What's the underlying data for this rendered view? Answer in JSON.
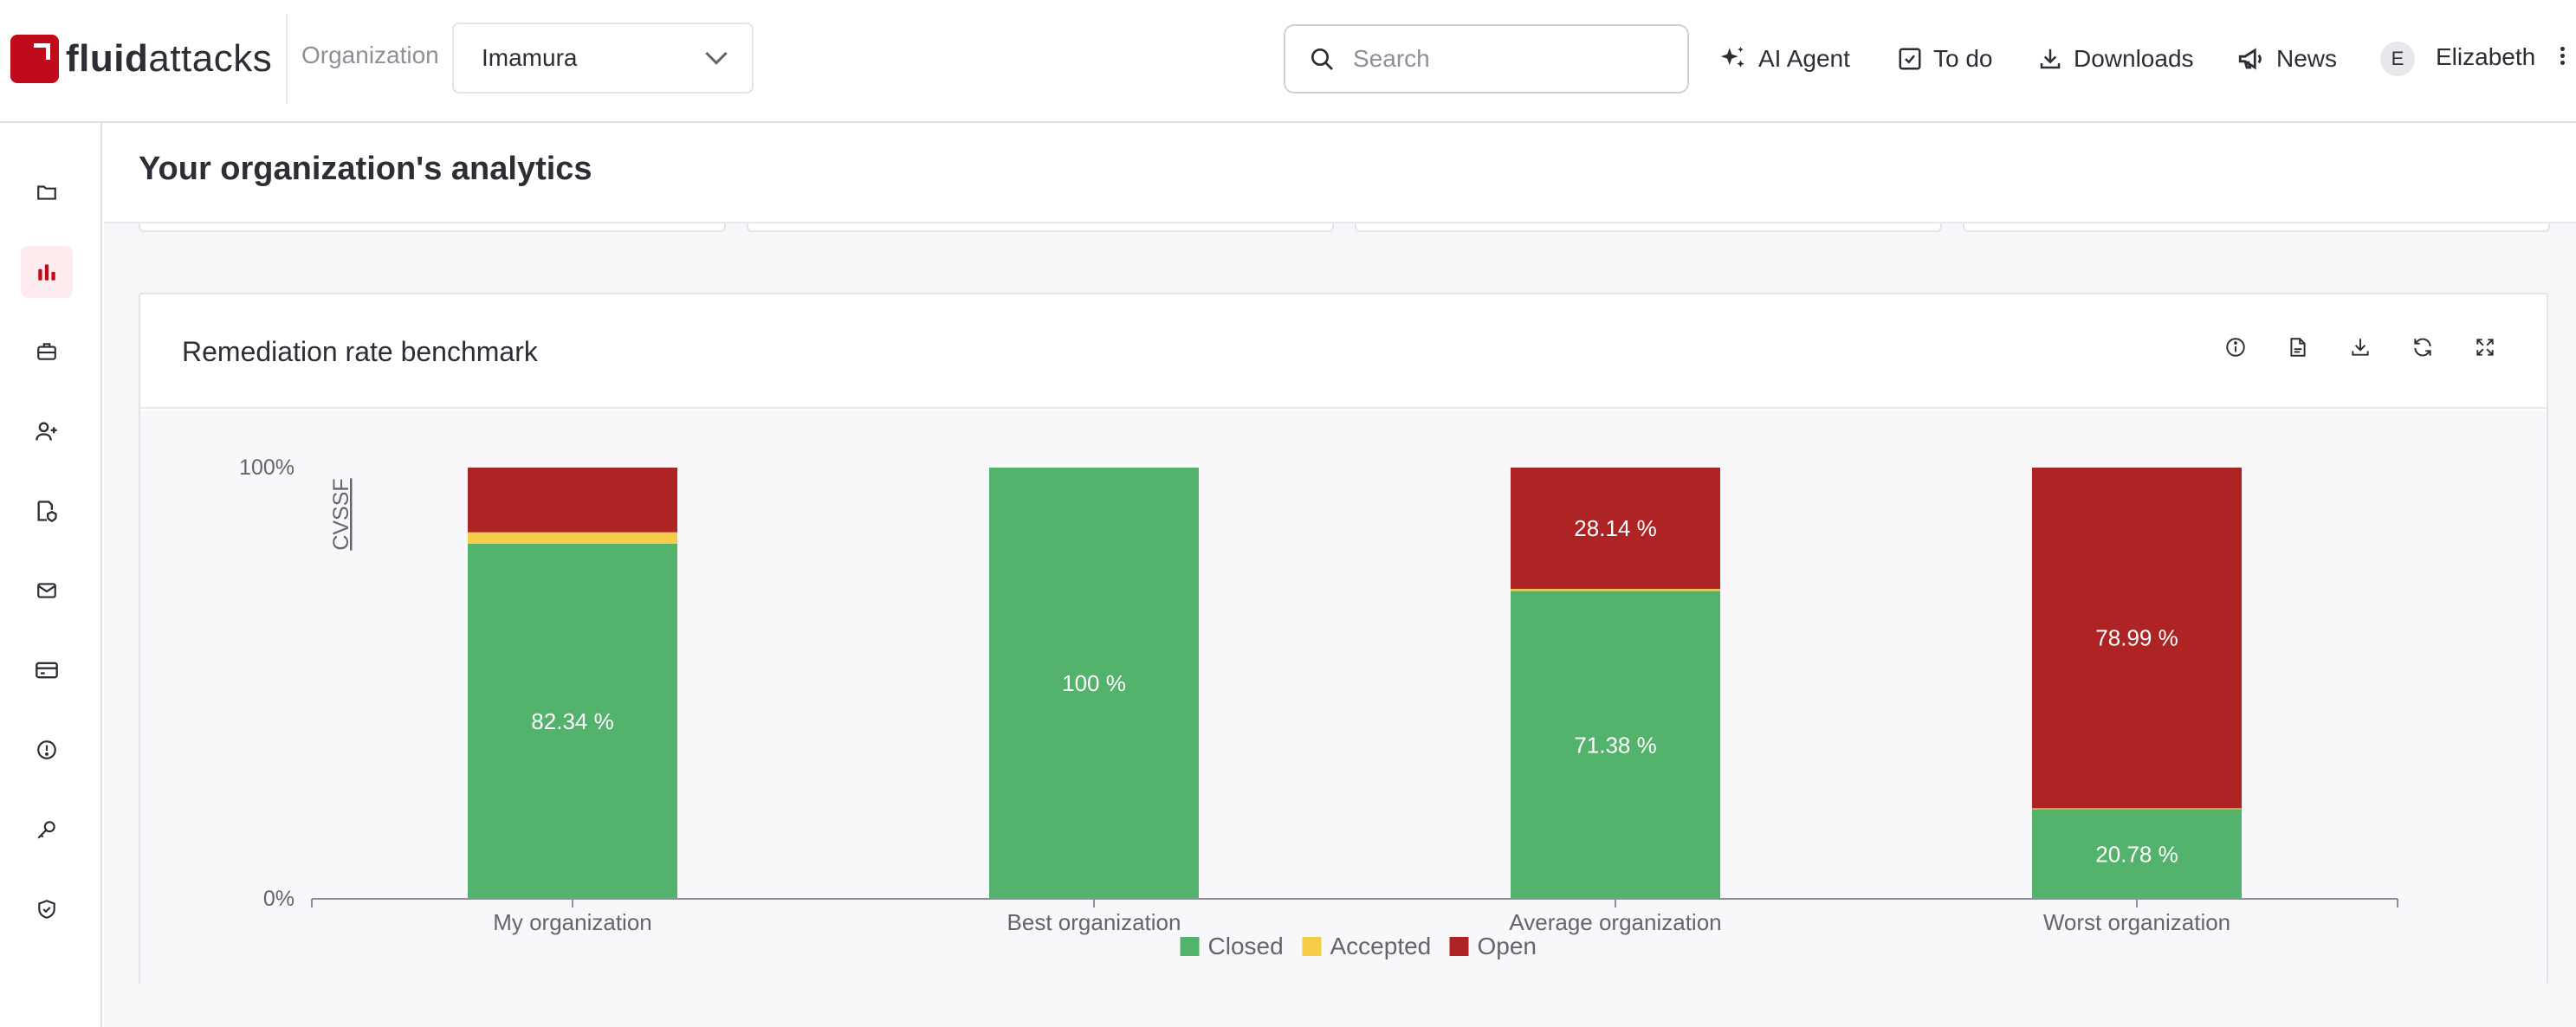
{
  "brand": {
    "bold": "fluid",
    "light": "attacks",
    "accent": "#bf0b1a"
  },
  "org": {
    "label": "Organization",
    "selected": "Imamura"
  },
  "search": {
    "placeholder": "Search"
  },
  "nav": {
    "ai_agent": "AI Agent",
    "todo": "To do",
    "downloads": "Downloads",
    "news": "News"
  },
  "user": {
    "initial": "E",
    "name": "Elizabeth"
  },
  "sidebar": {
    "items": [
      {
        "icon": "folder-icon"
      },
      {
        "icon": "bar-chart-icon",
        "active": true
      },
      {
        "icon": "briefcase-icon"
      },
      {
        "icon": "user-plus-icon"
      },
      {
        "icon": "policies-icon"
      },
      {
        "icon": "mail-icon"
      },
      {
        "icon": "credit-card-icon"
      },
      {
        "icon": "alert-circle-icon"
      },
      {
        "icon": "key-icon"
      },
      {
        "icon": "shield-check-icon"
      }
    ]
  },
  "page": {
    "title": "Your organization's analytics"
  },
  "card": {
    "title": "Remediation rate benchmark",
    "tools": [
      "info-icon",
      "csv-export-icon",
      "download-icon",
      "refresh-icon",
      "expand-icon"
    ]
  },
  "chart_data": {
    "type": "bar",
    "stacked": true,
    "categories": [
      "My organization",
      "Best organization",
      "Average organization",
      "Worst organization"
    ],
    "series": [
      {
        "name": "Closed",
        "color": "#53b26c",
        "values": [
          82.34,
          100,
          71.38,
          20.78
        ],
        "labels": [
          "82.34 %",
          "100 %",
          "71.38 %",
          "20.78 %"
        ]
      },
      {
        "name": "Accepted",
        "color": "#f6cd49",
        "values": [
          2.66,
          0,
          0.48,
          0.23
        ],
        "labels": [
          "",
          "",
          "",
          ""
        ]
      },
      {
        "name": "Open",
        "color": "#ae2425",
        "values": [
          15.0,
          0,
          28.14,
          78.99
        ],
        "labels": [
          "",
          "",
          "28.14 %",
          "78.99 %"
        ]
      }
    ],
    "ylabel": "CVSSF",
    "yticks": [
      "0%",
      "100%"
    ],
    "ylim": [
      0,
      100
    ],
    "legend": "bottom-center",
    "grid": false
  }
}
